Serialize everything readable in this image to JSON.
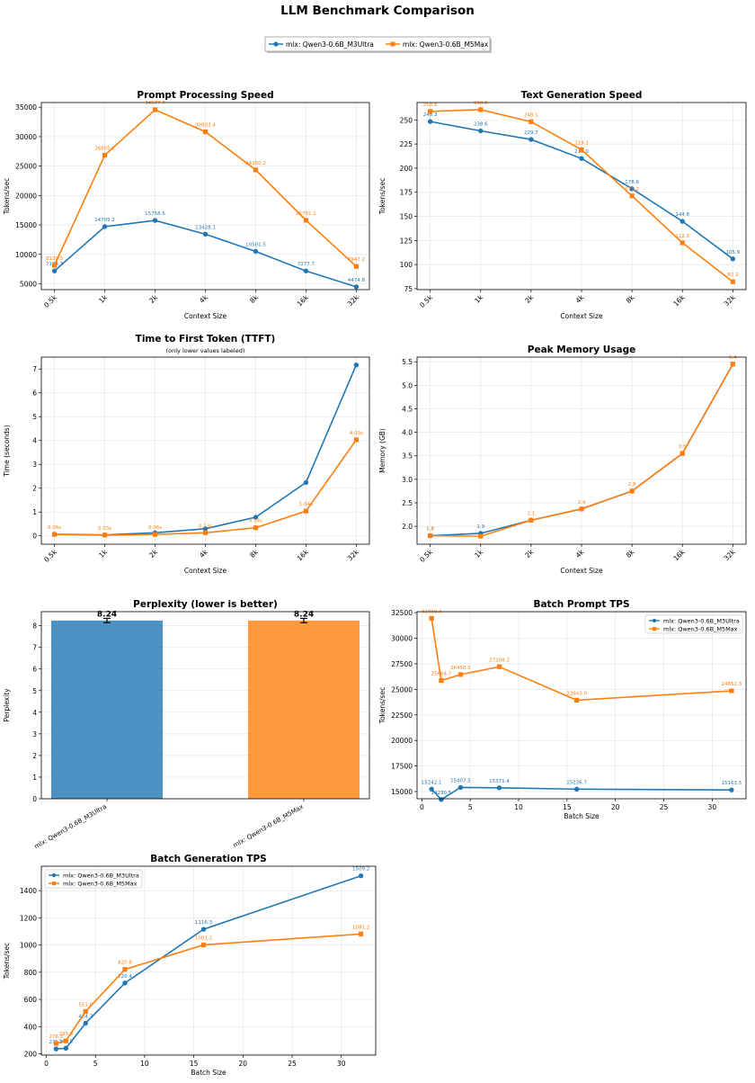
{
  "figure": {
    "title": "LLM Benchmark Comparison",
    "legend": [
      {
        "name": "mlx: Qwen3-0.6B_M3Ultra",
        "color": "#1f77b4",
        "marker": "circle"
      },
      {
        "name": "mlx: Qwen3-0.6B_M5Max",
        "color": "#ff7f0e",
        "marker": "square"
      }
    ]
  },
  "chart_data": [
    {
      "type": "line",
      "title": "Prompt Processing Speed",
      "xlabel": "Context Size",
      "ylabel": "Tokens/sec",
      "categories": [
        "0.5k",
        "1k",
        "2k",
        "4k",
        "8k",
        "16k",
        "32k"
      ],
      "ylim": [
        4000,
        35800
      ],
      "yticks": [
        5000,
        10000,
        15000,
        20000,
        25000,
        30000,
        35000
      ],
      "grid": true,
      "series": [
        {
          "name": "mlx: Qwen3-0.6B_M3Ultra",
          "color": "#1f77b4",
          "marker": "circle",
          "values": [
            7184.3,
            14709.2,
            15758.6,
            13428.1,
            10501.5,
            7177.7,
            4474.8
          ],
          "labels": [
            "7184.3",
            "14709.2",
            "15758.6",
            "13428.1",
            "10501.5",
            "7177.7",
            "4474.8"
          ]
        },
        {
          "name": "mlx: Qwen3-0.6B_M5Max",
          "color": "#ff7f0e",
          "marker": "square",
          "values": [
            8130.5,
            26855.1,
            34577.7,
            30832.4,
            24350.2,
            15791.1,
            7947.2
          ],
          "labels": [
            "8130.5",
            "26855.1",
            "34577.7",
            "30832.4",
            "24350.2",
            "15791.1",
            "7947.2"
          ]
        }
      ]
    },
    {
      "type": "line",
      "title": "Text Generation Speed",
      "xlabel": "Context Size",
      "ylabel": "Tokens/sec",
      "categories": [
        "0.5k",
        "1k",
        "2k",
        "4k",
        "8k",
        "16k",
        "32k"
      ],
      "ylim": [
        74,
        268
      ],
      "yticks": [
        75,
        100,
        125,
        150,
        175,
        200,
        225,
        250
      ],
      "grid": true,
      "series": [
        {
          "name": "mlx: Qwen3-0.6B_M3Ultra",
          "color": "#1f77b4",
          "marker": "circle",
          "values": [
            248.3,
            238.6,
            229.7,
            210.0,
            178.6,
            144.8,
            105.9
          ],
          "labels": [
            "248.3",
            "238.6",
            "229.7",
            "210.0",
            "178.6",
            "144.8",
            "105.9"
          ]
        },
        {
          "name": "mlx: Qwen3-0.6B_M5Max",
          "color": "#ff7f0e",
          "marker": "square",
          "values": [
            258.8,
            260.6,
            248.1,
            219.1,
            171.2,
            122.5,
            82.2
          ],
          "labels": [
            "258.8",
            "260.6",
            "248.1",
            "219.1",
            "171.2",
            "122.5",
            "82.2"
          ]
        }
      ]
    },
    {
      "type": "line",
      "title": "Time to First Token (TTFT)",
      "subtitle": "(only lower values labeled)",
      "xlabel": "Context Size",
      "ylabel": "Time (seconds)",
      "categories": [
        "0.5k",
        "1k",
        "2k",
        "4k",
        "8k",
        "16k",
        "32k"
      ],
      "ylim": [
        -0.35,
        7.5
      ],
      "yticks": [
        0,
        1,
        2,
        3,
        4,
        5,
        6,
        7
      ],
      "grid": true,
      "series": [
        {
          "name": "mlx: Qwen3-0.6B_M3Ultra",
          "color": "#1f77b4",
          "marker": "circle",
          "values": [
            0.07,
            0.04,
            0.13,
            0.3,
            0.78,
            2.24,
            7.17
          ],
          "labels": [
            "",
            "",
            "",
            "",
            "",
            "",
            ""
          ]
        },
        {
          "name": "mlx: Qwen3-0.6B_M5Max",
          "color": "#ff7f0e",
          "marker": "square",
          "values": [
            0.06,
            0.03,
            0.06,
            0.13,
            0.34,
            1.04,
            4.03
          ],
          "labels": [
            "0.06s",
            "0.03s",
            "0.06s",
            "0.13s",
            "0.34s",
            "1.04s",
            "4.03s"
          ]
        }
      ]
    },
    {
      "type": "line",
      "title": "Peak Memory Usage",
      "xlabel": "Context Size",
      "ylabel": "Memory (GB)",
      "categories": [
        "0.5k",
        "1k",
        "2k",
        "4k",
        "8k",
        "16k",
        "32k"
      ],
      "ylim": [
        1.62,
        5.6
      ],
      "yticks": [
        2.0,
        2.5,
        3.0,
        3.5,
        4.0,
        4.5,
        5.0,
        5.5
      ],
      "ytick_labels": [
        "2.0",
        "2.5",
        "3.0",
        "3.5",
        "4.0",
        "4.5",
        "5.0",
        "5.5"
      ],
      "grid": true,
      "series": [
        {
          "name": "mlx: Qwen3-0.6B_M3Ultra",
          "color": "#1f77b4",
          "marker": "circle",
          "values": [
            1.8,
            1.85,
            2.13,
            2.37,
            2.75,
            3.55,
            5.45
          ],
          "labels": [
            "1.8",
            "1.9",
            "",
            "",
            "",
            "",
            ""
          ]
        },
        {
          "name": "mlx: Qwen3-0.6B_M5Max",
          "color": "#ff7f0e",
          "marker": "square",
          "values": [
            1.8,
            1.79,
            2.13,
            2.37,
            2.75,
            3.55,
            5.45
          ],
          "labels": [
            "1.8",
            "",
            "2.1",
            "2.4",
            "2.8",
            "3.5",
            "5.4"
          ]
        }
      ]
    },
    {
      "type": "bar",
      "title": "Perplexity (lower is better)",
      "ylabel": "Perplexity",
      "categories": [
        "mlx: Qwen3-0.6B_M3Ultra",
        "mlx: Qwen3-0.6B_M5Max"
      ],
      "values": [
        8.24,
        8.24
      ],
      "value_labels": [
        "8.24",
        "8.24"
      ],
      "error": [
        0.1,
        0.1
      ],
      "colors": [
        "#1f77b4",
        "#ff7f0e"
      ],
      "ylim": [
        0,
        8.65
      ],
      "yticks": [
        0,
        1,
        2,
        3,
        4,
        5,
        6,
        7,
        8
      ],
      "grid": true
    },
    {
      "type": "line",
      "title": "Batch Prompt TPS",
      "xlabel": "Batch Size",
      "ylabel": "Tokens/sec",
      "xlim": [
        -0.5,
        33.5
      ],
      "xticks": [
        0,
        5,
        10,
        15,
        20,
        25,
        30
      ],
      "ylim": [
        14300,
        32600
      ],
      "yticks": [
        15000,
        17500,
        20000,
        22500,
        25000,
        27500,
        30000,
        32500
      ],
      "grid": true,
      "legend_position": "top-right",
      "series": [
        {
          "name": "mlx: Qwen3-0.6B_M3Ultra",
          "color": "#1f77b4",
          "marker": "circle",
          "x": [
            1,
            2,
            4,
            8,
            16,
            32
          ],
          "values": [
            15242.1,
            14230.5,
            15407.5,
            15371.4,
            15236.7,
            15163.5
          ],
          "labels": [
            "15242.1",
            "14230.5",
            "15407.5",
            "15371.4",
            "15236.7",
            "15163.5"
          ]
        },
        {
          "name": "mlx: Qwen3-0.6B_M5Max",
          "color": "#ff7f0e",
          "marker": "square",
          "x": [
            1,
            2,
            4,
            8,
            16,
            32
          ],
          "values": [
            31939.3,
            25864.7,
            26450.5,
            27208.2,
            23943.0,
            24852.3
          ],
          "labels": [
            "31939.3",
            "25864.7",
            "26450.5",
            "27208.2",
            "23943.0",
            "24852.3"
          ]
        }
      ]
    },
    {
      "type": "line",
      "title": "Batch Generation TPS",
      "xlabel": "Batch Size",
      "ylabel": "Tokens/sec",
      "xlim": [
        -0.5,
        33.5
      ],
      "xticks": [
        0,
        5,
        10,
        15,
        20,
        25,
        30
      ],
      "ylim": [
        190,
        1580
      ],
      "yticks": [
        200,
        400,
        600,
        800,
        1000,
        1200,
        1400
      ],
      "grid": true,
      "legend_position": "top-left",
      "series": [
        {
          "name": "mlx: Qwen3-0.6B_M3Ultra",
          "color": "#1f77b4",
          "marker": "circle",
          "x": [
            1,
            2,
            4,
            8,
            16,
            32
          ],
          "values": [
            235.5,
            240.5,
            424.7,
            720.4,
            1116.3,
            1509.2
          ],
          "labels": [
            "235.5",
            "240.5",
            "424.7",
            "720.4",
            "1116.3",
            "1509.2"
          ]
        },
        {
          "name": "mlx: Qwen3-0.6B_M5Max",
          "color": "#ff7f0e",
          "marker": "square",
          "x": [
            1,
            2,
            4,
            8,
            16,
            32
          ],
          "values": [
            276.0,
            295.0,
            511.0,
            820.8,
            1001.2,
            1081.2
          ],
          "labels": [
            "276.0",
            "295.0",
            "511.0",
            "820.8",
            "1001.2",
            "1081.2"
          ]
        }
      ]
    }
  ]
}
